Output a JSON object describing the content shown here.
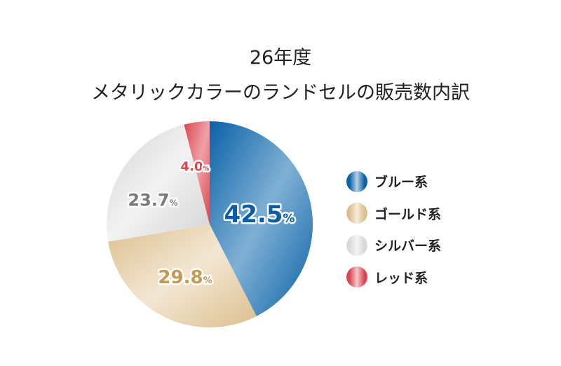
{
  "chart_data": {
    "type": "pie",
    "title": [
      "26年度",
      "メタリックカラーのランドセルの販売数内訳"
    ],
    "categories": [
      "ブルー系",
      "ゴールド系",
      "シルバー系",
      "レッド系"
    ],
    "values": [
      42.5,
      29.8,
      23.7,
      4.0
    ],
    "labels": [
      "42.5",
      "29.8",
      "23.7",
      "4.0"
    ],
    "unit": "%",
    "colors": [
      "#0b62a8",
      "#dcbf8e",
      "#d9d9d9",
      "#d94650"
    ],
    "label_colors": [
      "#0b5ea5",
      "#c49a55",
      "#7a7a7a",
      "#d94650"
    ],
    "legend_position": "right",
    "start": "top, clockwise"
  }
}
